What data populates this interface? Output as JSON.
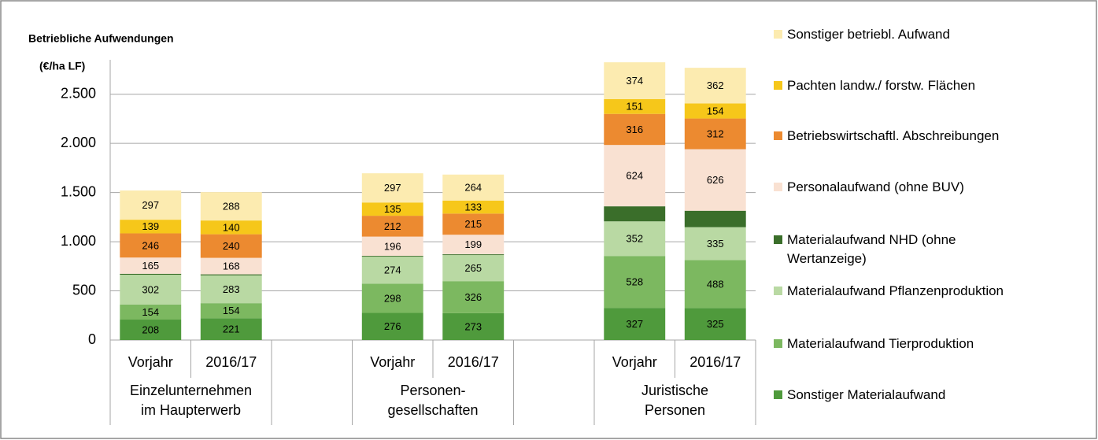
{
  "chart_data": {
    "type": "stacked_bar",
    "title": "Betriebliche Aufwendungen",
    "y_axis_label": "(€/ha LF)",
    "categories": [
      "Vorjahr",
      "2016/17",
      null,
      "Vorjahr",
      "2016/17",
      null,
      "Vorjahr",
      "2016/17"
    ],
    "groups": [
      [
        "Einzelunternehmen",
        "im Haupterwerb"
      ],
      [
        "Personen-",
        "gesellschaften"
      ],
      [
        "Juristische",
        "Personen"
      ]
    ],
    "ylim": [
      0,
      2850
    ],
    "yticks": [
      0,
      500,
      {
        "value": 1000,
        "label": "1.000"
      },
      {
        "value": 1500,
        "label": "1.500"
      },
      {
        "value": 2000,
        "label": "2.000"
      },
      {
        "value": 2500,
        "label": "2.500"
      }
    ],
    "grid": true,
    "legend": "right",
    "series": [
      {
        "name": "Sonstiger Materialaufwand",
        "color": "#4f9a3c",
        "values": [
          208,
          221,
          null,
          276,
          273,
          null,
          327,
          325
        ],
        "show_labels": true
      },
      {
        "name": "Materialaufwand Tierproduktion",
        "color": "#7cb860",
        "values": [
          154,
          154,
          null,
          298,
          326,
          null,
          528,
          488
        ],
        "show_labels": true
      },
      {
        "name": "Materialaufwand Pflanzenproduktion",
        "color": "#b9d9a3",
        "values": [
          302,
          283,
          null,
          274,
          265,
          null,
          352,
          335
        ],
        "show_labels": true
      },
      {
        "name": "Materialaufwand NHD (ohne Wertanzeige)",
        "color": "#3a6e2a",
        "values": [
          10,
          10,
          null,
          8,
          8,
          null,
          153,
          167
        ],
        "show_labels": false
      },
      {
        "name": "Personalaufwand (ohne BUV)",
        "color": "#f9e1d2",
        "values": [
          165,
          168,
          null,
          196,
          199,
          null,
          624,
          626
        ],
        "show_labels": true
      },
      {
        "name": "Betriebswirtschaftl. Abschreibungen",
        "color": "#ec8a30",
        "values": [
          246,
          240,
          null,
          212,
          215,
          null,
          316,
          312
        ],
        "show_labels": true
      },
      {
        "name": "Pachten landw./ forstw. Flächen",
        "color": "#f6c71a",
        "values": [
          139,
          140,
          null,
          135,
          133,
          null,
          151,
          154
        ],
        "show_labels": true
      },
      {
        "name": "Sonstiger betriebl. Aufwand",
        "color": "#fcebb0",
        "values": [
          297,
          288,
          null,
          297,
          264,
          null,
          374,
          362
        ],
        "show_labels": true
      }
    ]
  }
}
